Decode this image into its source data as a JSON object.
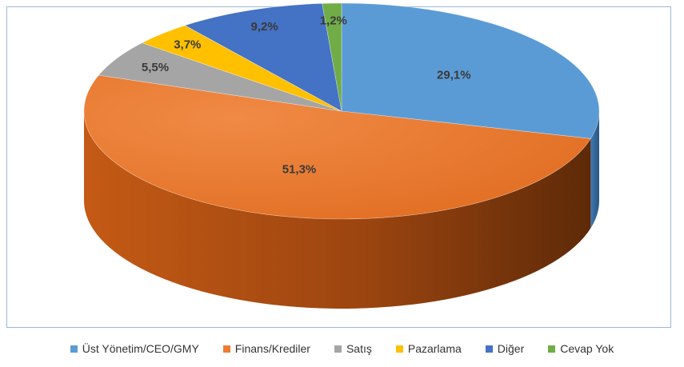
{
  "chart_data": {
    "type": "pie",
    "style": "3d",
    "categories": [
      "Üst Yönetim/CEO/GMY",
      "Finans/Krediler",
      "Satış",
      "Pazarlama",
      "Diğer",
      "Cevap Yok"
    ],
    "values": [
      29.1,
      51.3,
      5.5,
      3.7,
      9.2,
      1.2
    ],
    "labels": [
      "29,1%",
      "51,3%",
      "5,5%",
      "3,7%",
      "9,2%",
      "1,2%"
    ],
    "colors": [
      "#5b9bd5",
      "#ed7d31",
      "#a5a5a5",
      "#ffc000",
      "#4472c4",
      "#70ad47"
    ],
    "legend_position": "bottom",
    "title": ""
  },
  "legend": {
    "items": [
      {
        "label": "Üst Yönetim/CEO/GMY",
        "color": "#5b9bd5"
      },
      {
        "label": "Finans/Krediler",
        "color": "#ed7d31"
      },
      {
        "label": "Satış",
        "color": "#a5a5a5"
      },
      {
        "label": "Pazarlama",
        "color": "#ffc000"
      },
      {
        "label": "Diğer",
        "color": "#4472c4"
      },
      {
        "label": "Cevap Yok",
        "color": "#70ad47"
      }
    ]
  }
}
